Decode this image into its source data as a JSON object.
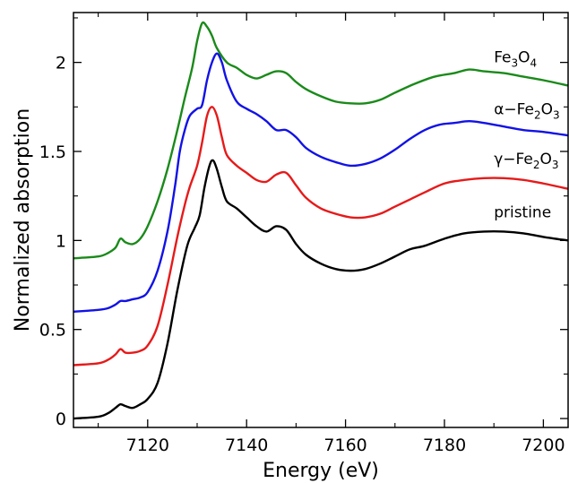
{
  "chart_data": {
    "type": "line",
    "title": "",
    "xlabel": "Energy (eV)",
    "ylabel": "Normalized absorption",
    "xlim": [
      7105,
      7205
    ],
    "ylim": [
      -0.05,
      2.28
    ],
    "xticks": [
      7120,
      7140,
      7160,
      7180,
      7200
    ],
    "yticks": [
      {
        "value": 0,
        "label": "0"
      },
      {
        "value": 0.5,
        "label": "0.5"
      },
      {
        "value": 1,
        "label": "1"
      },
      {
        "value": 1.5,
        "label": "1.5"
      },
      {
        "value": 2,
        "label": "2"
      }
    ],
    "grid": false,
    "legend": "none (series labelled directly on the right)",
    "series": [
      {
        "name": "Fe3O4",
        "label_parts": [
          {
            "text": "Fe"
          },
          {
            "text": "3",
            "sub": true
          },
          {
            "text": "O"
          },
          {
            "text": "4",
            "sub": true
          }
        ],
        "color": "#1a8a1a",
        "label_x": 7190,
        "label_y": 2.0,
        "points": [
          [
            7105,
            0.9
          ],
          [
            7110,
            0.91
          ],
          [
            7112,
            0.93
          ],
          [
            7113.5,
            0.96
          ],
          [
            7114.5,
            1.01
          ],
          [
            7115.5,
            0.99
          ],
          [
            7117,
            0.98
          ],
          [
            7118.5,
            1.01
          ],
          [
            7120,
            1.08
          ],
          [
            7122,
            1.22
          ],
          [
            7124,
            1.4
          ],
          [
            7126,
            1.62
          ],
          [
            7127.5,
            1.8
          ],
          [
            7129,
            1.97
          ],
          [
            7130,
            2.12
          ],
          [
            7131,
            2.22
          ],
          [
            7132,
            2.2
          ],
          [
            7133,
            2.15
          ],
          [
            7134,
            2.08
          ],
          [
            7136,
            2.0
          ],
          [
            7138,
            1.97
          ],
          [
            7140,
            1.93
          ],
          [
            7142,
            1.91
          ],
          [
            7144,
            1.93
          ],
          [
            7146,
            1.95
          ],
          [
            7148,
            1.94
          ],
          [
            7150,
            1.89
          ],
          [
            7152,
            1.85
          ],
          [
            7155,
            1.81
          ],
          [
            7158,
            1.78
          ],
          [
            7161,
            1.77
          ],
          [
            7164,
            1.77
          ],
          [
            7167,
            1.79
          ],
          [
            7170,
            1.83
          ],
          [
            7174,
            1.88
          ],
          [
            7178,
            1.92
          ],
          [
            7182,
            1.94
          ],
          [
            7185,
            1.96
          ],
          [
            7188,
            1.95
          ],
          [
            7192,
            1.94
          ],
          [
            7196,
            1.92
          ],
          [
            7200,
            1.9
          ],
          [
            7205,
            1.87
          ]
        ]
      },
      {
        "name": "α-Fe2O3",
        "label_parts": [
          {
            "text": "α−Fe"
          },
          {
            "text": "2",
            "sub": true
          },
          {
            "text": "O"
          },
          {
            "text": "3",
            "sub": true
          }
        ],
        "color": "#1212e6",
        "label_x": 7190,
        "label_y": 1.71,
        "points": [
          [
            7105,
            0.6
          ],
          [
            7110,
            0.61
          ],
          [
            7112,
            0.62
          ],
          [
            7113.5,
            0.64
          ],
          [
            7114.5,
            0.66
          ],
          [
            7115.5,
            0.66
          ],
          [
            7117,
            0.67
          ],
          [
            7118.5,
            0.68
          ],
          [
            7120,
            0.71
          ],
          [
            7122,
            0.83
          ],
          [
            7124,
            1.05
          ],
          [
            7125.5,
            1.3
          ],
          [
            7126.5,
            1.5
          ],
          [
            7127.5,
            1.62
          ],
          [
            7128.5,
            1.7
          ],
          [
            7130,
            1.74
          ],
          [
            7131,
            1.76
          ],
          [
            7132,
            1.9
          ],
          [
            7133,
            2.0
          ],
          [
            7134,
            2.05
          ],
          [
            7135,
            2.0
          ],
          [
            7136,
            1.9
          ],
          [
            7138,
            1.78
          ],
          [
            7140,
            1.74
          ],
          [
            7142,
            1.71
          ],
          [
            7144,
            1.67
          ],
          [
            7146,
            1.62
          ],
          [
            7148,
            1.62
          ],
          [
            7150,
            1.58
          ],
          [
            7152,
            1.52
          ],
          [
            7155,
            1.47
          ],
          [
            7158,
            1.44
          ],
          [
            7161,
            1.42
          ],
          [
            7164,
            1.43
          ],
          [
            7167,
            1.46
          ],
          [
            7170,
            1.51
          ],
          [
            7173,
            1.57
          ],
          [
            7176,
            1.62
          ],
          [
            7179,
            1.65
          ],
          [
            7182,
            1.66
          ],
          [
            7185,
            1.67
          ],
          [
            7188,
            1.66
          ],
          [
            7192,
            1.64
          ],
          [
            7196,
            1.62
          ],
          [
            7200,
            1.61
          ],
          [
            7205,
            1.59
          ]
        ]
      },
      {
        "name": "γ-Fe2O3",
        "label_parts": [
          {
            "text": "γ−Fe"
          },
          {
            "text": "2",
            "sub": true
          },
          {
            "text": "O"
          },
          {
            "text": "3",
            "sub": true
          }
        ],
        "color": "#e61a1a",
        "label_x": 7190,
        "label_y": 1.43,
        "points": [
          [
            7105,
            0.3
          ],
          [
            7110,
            0.31
          ],
          [
            7112,
            0.33
          ],
          [
            7113.5,
            0.36
          ],
          [
            7114.5,
            0.39
          ],
          [
            7115.5,
            0.37
          ],
          [
            7117,
            0.37
          ],
          [
            7118.5,
            0.38
          ],
          [
            7120,
            0.41
          ],
          [
            7122,
            0.52
          ],
          [
            7124,
            0.75
          ],
          [
            7126,
            1.02
          ],
          [
            7127.5,
            1.2
          ],
          [
            7128.5,
            1.3
          ],
          [
            7130,
            1.42
          ],
          [
            7131,
            1.55
          ],
          [
            7132,
            1.7
          ],
          [
            7133,
            1.75
          ],
          [
            7134,
            1.7
          ],
          [
            7135,
            1.58
          ],
          [
            7136,
            1.48
          ],
          [
            7138,
            1.42
          ],
          [
            7140,
            1.38
          ],
          [
            7142,
            1.34
          ],
          [
            7144,
            1.33
          ],
          [
            7146,
            1.37
          ],
          [
            7148,
            1.38
          ],
          [
            7150,
            1.31
          ],
          [
            7152,
            1.24
          ],
          [
            7155,
            1.18
          ],
          [
            7158,
            1.15
          ],
          [
            7161,
            1.13
          ],
          [
            7164,
            1.13
          ],
          [
            7167,
            1.15
          ],
          [
            7170,
            1.19
          ],
          [
            7173,
            1.23
          ],
          [
            7176,
            1.27
          ],
          [
            7180,
            1.32
          ],
          [
            7184,
            1.34
          ],
          [
            7188,
            1.35
          ],
          [
            7192,
            1.35
          ],
          [
            7196,
            1.34
          ],
          [
            7200,
            1.32
          ],
          [
            7205,
            1.29
          ]
        ]
      },
      {
        "name": "pristine",
        "label_parts": [
          {
            "text": "pristine"
          }
        ],
        "color": "#000000",
        "label_x": 7190,
        "label_y": 1.13,
        "points": [
          [
            7105,
            0.0
          ],
          [
            7110,
            0.01
          ],
          [
            7112,
            0.03
          ],
          [
            7113.5,
            0.06
          ],
          [
            7114.5,
            0.08
          ],
          [
            7115.5,
            0.07
          ],
          [
            7117,
            0.06
          ],
          [
            7118.5,
            0.08
          ],
          [
            7120,
            0.11
          ],
          [
            7122,
            0.2
          ],
          [
            7124,
            0.42
          ],
          [
            7126,
            0.72
          ],
          [
            7128,
            0.97
          ],
          [
            7129.5,
            1.07
          ],
          [
            7130.5,
            1.14
          ],
          [
            7131.5,
            1.3
          ],
          [
            7132.5,
            1.42
          ],
          [
            7133.2,
            1.45
          ],
          [
            7134,
            1.4
          ],
          [
            7135,
            1.3
          ],
          [
            7136,
            1.22
          ],
          [
            7138,
            1.18
          ],
          [
            7140,
            1.13
          ],
          [
            7142,
            1.08
          ],
          [
            7144,
            1.05
          ],
          [
            7146,
            1.08
          ],
          [
            7148,
            1.06
          ],
          [
            7150,
            0.98
          ],
          [
            7152,
            0.92
          ],
          [
            7155,
            0.87
          ],
          [
            7158,
            0.84
          ],
          [
            7161,
            0.83
          ],
          [
            7164,
            0.84
          ],
          [
            7167,
            0.87
          ],
          [
            7170,
            0.91
          ],
          [
            7173,
            0.95
          ],
          [
            7176,
            0.97
          ],
          [
            7180,
            1.01
          ],
          [
            7184,
            1.04
          ],
          [
            7188,
            1.05
          ],
          [
            7192,
            1.05
          ],
          [
            7196,
            1.04
          ],
          [
            7200,
            1.02
          ],
          [
            7205,
            1.0
          ]
        ]
      }
    ]
  }
}
